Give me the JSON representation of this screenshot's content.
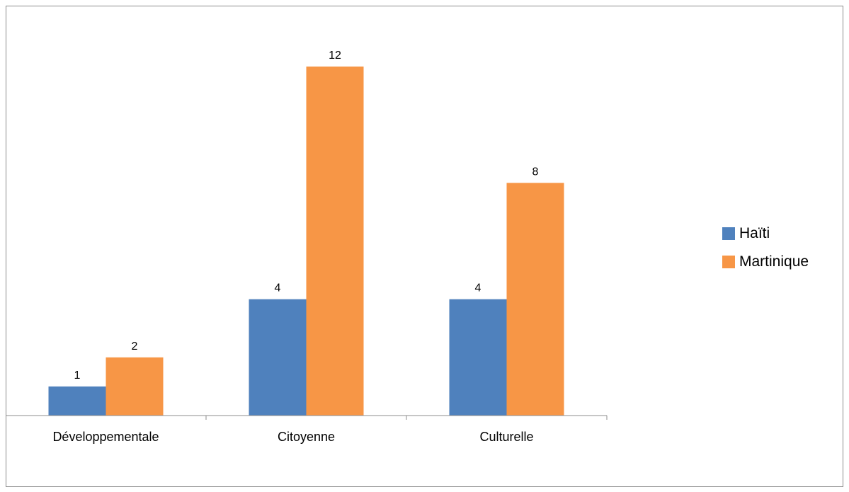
{
  "chart_data": {
    "type": "bar",
    "categories": [
      "Développementale",
      "Citoyenne",
      "Culturelle"
    ],
    "series": [
      {
        "name": "Haïti",
        "values": [
          1,
          4,
          4
        ],
        "color": "#4f81bd"
      },
      {
        "name": "Martinique",
        "values": [
          2,
          12,
          8
        ],
        "color": "#f79646"
      }
    ],
    "ylim": [
      0,
      12.5
    ],
    "grid": false,
    "data_labels": true,
    "legend_position": "right"
  }
}
